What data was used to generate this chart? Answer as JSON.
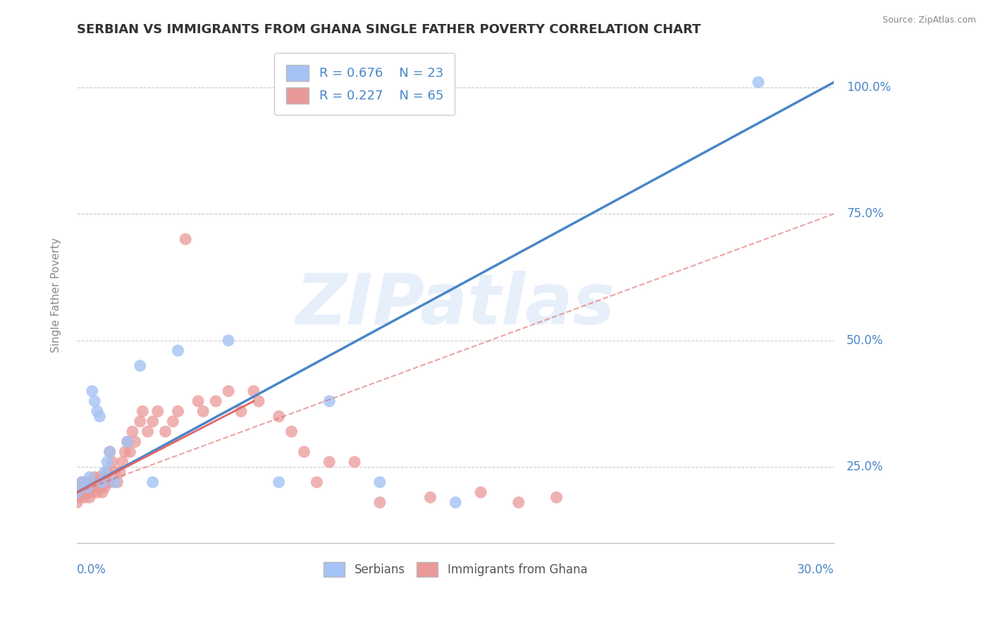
{
  "title": "SERBIAN VS IMMIGRANTS FROM GHANA SINGLE FATHER POVERTY CORRELATION CHART",
  "source": "Source: ZipAtlas.com",
  "ylabel": "Single Father Poverty",
  "xlim": [
    0.0,
    0.3
  ],
  "ylim": [
    0.1,
    1.08
  ],
  "ytick_labels": [
    "25.0%",
    "50.0%",
    "75.0%",
    "100.0%"
  ],
  "ytick_positions": [
    0.25,
    0.5,
    0.75,
    1.0
  ],
  "watermark": "ZIPatlas",
  "legend_R1": "R = 0.676",
  "legend_N1": "N = 23",
  "legend_R2": "R = 0.227",
  "legend_N2": "N = 65",
  "blue_color": "#a4c2f4",
  "pink_color": "#ea9999",
  "blue_line_color": "#4a86c8",
  "pink_line_color": "#e06666",
  "pink_dash_color": "#e06666",
  "blue_scatter": {
    "x": [
      0.0,
      0.002,
      0.004,
      0.005,
      0.006,
      0.007,
      0.008,
      0.009,
      0.01,
      0.011,
      0.012,
      0.013,
      0.015,
      0.02,
      0.025,
      0.03,
      0.04,
      0.06,
      0.08,
      0.1,
      0.12,
      0.15,
      0.27
    ],
    "y": [
      0.2,
      0.22,
      0.21,
      0.23,
      0.4,
      0.38,
      0.36,
      0.35,
      0.22,
      0.24,
      0.26,
      0.28,
      0.22,
      0.3,
      0.45,
      0.22,
      0.48,
      0.5,
      0.22,
      0.38,
      0.22,
      0.18,
      1.01
    ]
  },
  "pink_scatter": {
    "x": [
      0.0,
      0.0,
      0.001,
      0.001,
      0.002,
      0.002,
      0.003,
      0.003,
      0.004,
      0.004,
      0.005,
      0.005,
      0.006,
      0.006,
      0.007,
      0.007,
      0.008,
      0.008,
      0.009,
      0.009,
      0.01,
      0.01,
      0.011,
      0.011,
      0.012,
      0.012,
      0.013,
      0.013,
      0.014,
      0.015,
      0.016,
      0.017,
      0.018,
      0.019,
      0.02,
      0.021,
      0.022,
      0.023,
      0.025,
      0.026,
      0.028,
      0.03,
      0.032,
      0.035,
      0.038,
      0.04,
      0.043,
      0.048,
      0.05,
      0.055,
      0.06,
      0.065,
      0.07,
      0.072,
      0.08,
      0.085,
      0.09,
      0.095,
      0.1,
      0.11,
      0.12,
      0.14,
      0.16,
      0.175,
      0.19
    ],
    "y": [
      0.18,
      0.2,
      0.19,
      0.21,
      0.2,
      0.22,
      0.19,
      0.21,
      0.2,
      0.22,
      0.19,
      0.21,
      0.2,
      0.22,
      0.21,
      0.23,
      0.2,
      0.22,
      0.21,
      0.23,
      0.2,
      0.22,
      0.21,
      0.23,
      0.22,
      0.24,
      0.22,
      0.28,
      0.26,
      0.24,
      0.22,
      0.24,
      0.26,
      0.28,
      0.3,
      0.28,
      0.32,
      0.3,
      0.34,
      0.36,
      0.32,
      0.34,
      0.36,
      0.32,
      0.34,
      0.36,
      0.7,
      0.38,
      0.36,
      0.38,
      0.4,
      0.36,
      0.4,
      0.38,
      0.35,
      0.32,
      0.28,
      0.22,
      0.26,
      0.26,
      0.18,
      0.19,
      0.2,
      0.18,
      0.19
    ]
  },
  "blue_line": {
    "x0": 0.0,
    "x1": 0.3,
    "y0": 0.2,
    "y1": 1.01
  },
  "pink_solid_line": {
    "x0": 0.0,
    "x1": 0.07,
    "y0": 0.2,
    "y1": 0.38
  },
  "pink_dash_line": {
    "x0": 0.0,
    "x1": 0.3,
    "y0": 0.2,
    "y1": 0.75
  },
  "background_color": "#ffffff",
  "grid_color": "#cccccc",
  "title_color": "#333333",
  "axis_label_color": "#888888",
  "right_tick_color": "#4a86c8"
}
